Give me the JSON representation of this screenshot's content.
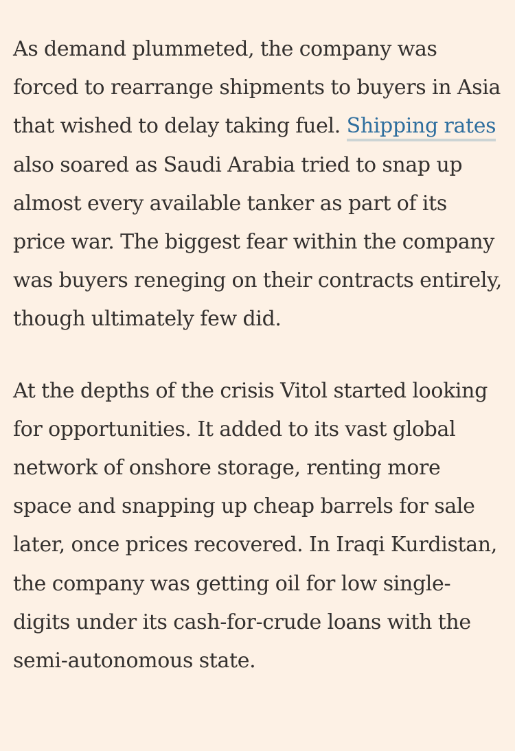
{
  "article": {
    "paragraph_1": {
      "link_text": "Shipping rates",
      "before_link": "As demand plummeted, the company was forced to rearrange shipments to buyers in Asia that wished to delay taking fuel. ",
      "after_link": " also soared as Saudi Arabia tried to snap up almost every available tanker as part of its price war. The biggest fear within the company was buyers reneging on their contracts entirely, though ultimately few did."
    },
    "paragraph_2": {
      "text": "At the depths of the crisis Vitol started looking for opportunities. It added to its vast global network of onshore storage, renting more space and snapping up cheap barrels for sale later, once prices recovered. In Iraqi Kurdistan, the company was getting oil for low single-digits under its cash-for-crude loans with the semi-autonomous state."
    }
  }
}
